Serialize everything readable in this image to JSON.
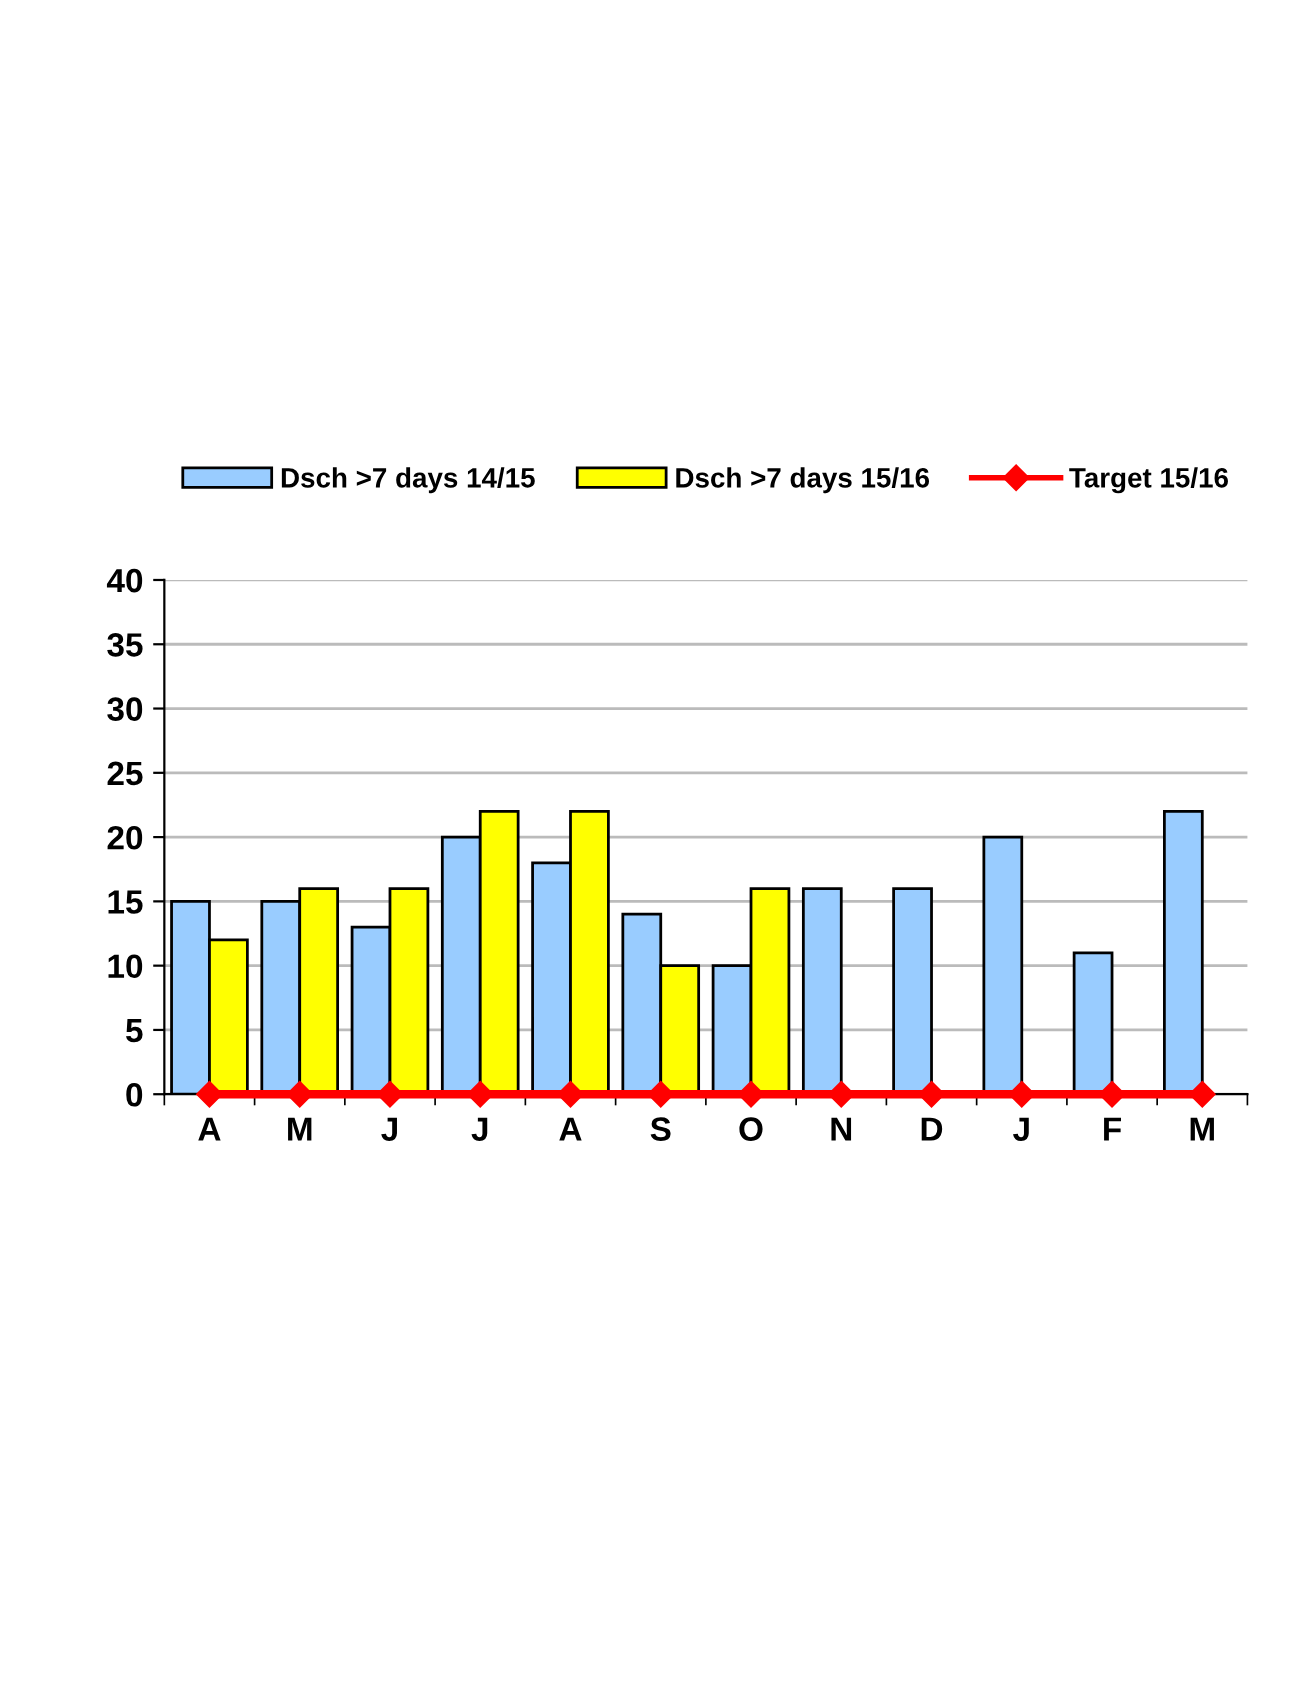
{
  "chart_data": {
    "type": "bar",
    "categories": [
      "A",
      "M",
      "J",
      "J",
      "A",
      "S",
      "O",
      "N",
      "D",
      "J",
      "F",
      "M"
    ],
    "series": [
      {
        "name": "Dsch >7 days 14/15",
        "color": "#99ccff",
        "values": [
          15,
          15,
          13,
          20,
          18,
          14,
          10,
          16,
          16,
          20,
          11,
          22
        ]
      },
      {
        "name": "Dsch >7 days 15/16",
        "color": "#ffff00",
        "values": [
          12,
          16,
          16,
          22,
          22,
          10,
          16,
          null,
          null,
          null,
          null,
          null
        ]
      },
      {
        "name": "Target 15/16",
        "type": "line",
        "color": "#ff0000",
        "marker": "diamond",
        "values": [
          0,
          0,
          0,
          0,
          0,
          0,
          0,
          0,
          0,
          0,
          0,
          0
        ]
      }
    ],
    "ylim": [
      0,
      40
    ],
    "yticks": [
      0,
      5,
      10,
      15,
      20,
      25,
      30,
      35,
      40
    ],
    "grid": "y",
    "legend": "top"
  }
}
